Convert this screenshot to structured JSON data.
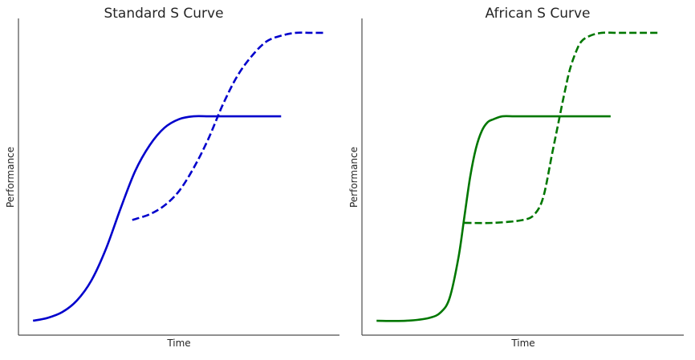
{
  "chart_data": [
    {
      "type": "line",
      "title": "Standard S Curve",
      "xlabel": "Time",
      "ylabel": "Performance",
      "xlim": [
        -0.5,
        10.5
      ],
      "ylim": [
        -0.05,
        1.05
      ],
      "grid": false,
      "series": [
        {
          "style": "solid",
          "color": "#0000cc",
          "x": [
            0.0,
            0.5,
            1.0,
            1.5,
            2.0,
            2.5,
            3.0,
            3.5,
            4.0,
            4.5,
            5.0,
            5.5,
            6.0,
            6.5,
            7.0,
            7.5,
            8.0,
            8.5
          ],
          "y": [
            0.0,
            0.01,
            0.03,
            0.07,
            0.14,
            0.25,
            0.39,
            0.52,
            0.61,
            0.67,
            0.7,
            0.71,
            0.71,
            0.71,
            0.71,
            0.71,
            0.71,
            0.71
          ]
        },
        {
          "style": "dashed",
          "color": "#0000cc",
          "x": [
            3.4,
            4.0,
            4.5,
            5.0,
            5.5,
            6.0,
            6.5,
            7.0,
            7.5,
            8.0,
            8.5,
            9.0,
            9.5,
            10.0
          ],
          "y": [
            0.35,
            0.37,
            0.4,
            0.45,
            0.53,
            0.63,
            0.75,
            0.85,
            0.92,
            0.97,
            0.99,
            1.0,
            1.0,
            1.0
          ]
        }
      ]
    },
    {
      "type": "line",
      "title": "African S Curve",
      "xlabel": "Time",
      "ylabel": "Performance",
      "xlim": [
        -0.5,
        10.5
      ],
      "ylim": [
        -0.05,
        1.05
      ],
      "grid": false,
      "series": [
        {
          "style": "solid",
          "color": "#007700",
          "x": [
            0.0,
            1.0,
            1.8,
            2.2,
            2.5,
            2.8,
            3.0,
            3.2,
            3.4,
            3.6,
            3.8,
            4.0,
            4.3,
            4.7,
            5.2,
            6.0,
            7.0,
            8.0
          ],
          "y": [
            0.0,
            0.0,
            0.01,
            0.03,
            0.08,
            0.22,
            0.36,
            0.5,
            0.6,
            0.66,
            0.69,
            0.7,
            0.71,
            0.71,
            0.71,
            0.71,
            0.71,
            0.71
          ]
        },
        {
          "style": "dashed",
          "color": "#007700",
          "x": [
            3.0,
            4.0,
            5.0,
            5.4,
            5.7,
            6.0,
            6.2,
            6.4,
            6.6,
            6.8,
            7.0,
            7.3,
            7.7,
            8.2,
            8.7,
            9.2,
            9.7
          ],
          "y": [
            0.34,
            0.34,
            0.35,
            0.37,
            0.43,
            0.58,
            0.68,
            0.78,
            0.87,
            0.93,
            0.97,
            0.99,
            1.0,
            1.0,
            1.0,
            1.0,
            1.0
          ]
        }
      ]
    }
  ]
}
